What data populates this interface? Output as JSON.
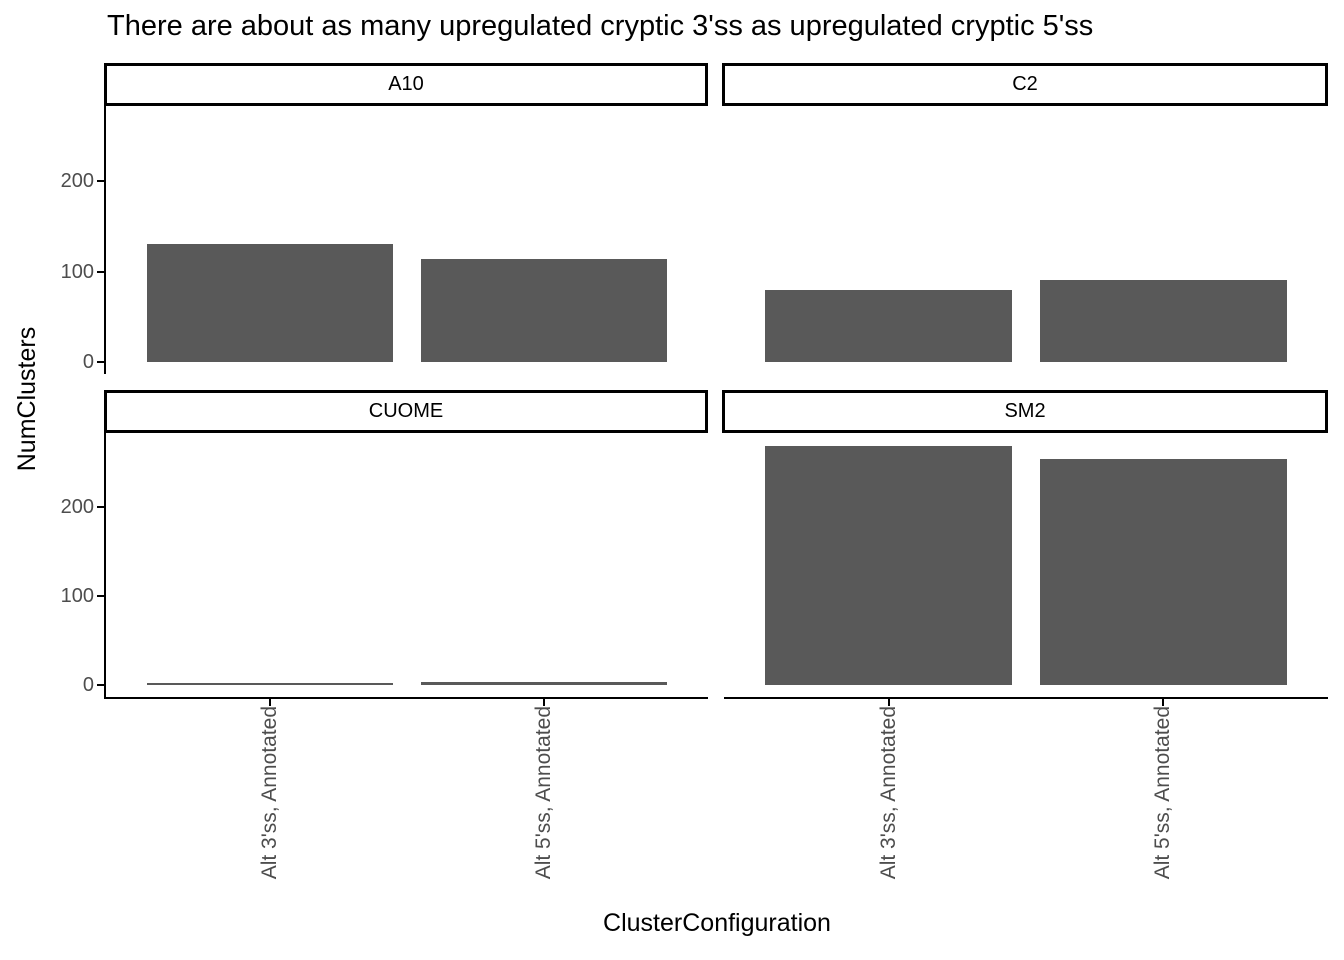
{
  "chart_data": {
    "type": "bar",
    "title": "There are about as many upregulated cryptic 3'ss as upregulated cryptic 5'ss",
    "xlabel": "ClusterConfiguration",
    "ylabel": "NumClusters",
    "categories": [
      "Alt 3'ss, Annotated",
      "Alt 5'ss, Annotated"
    ],
    "facets": [
      {
        "name": "A10",
        "values": [
          130,
          114
        ]
      },
      {
        "name": "C2",
        "values": [
          80,
          91
        ]
      },
      {
        "name": "CUOME",
        "values": [
          2,
          3
        ]
      },
      {
        "name": "SM2",
        "values": [
          268,
          254
        ]
      }
    ],
    "y_ticks": [
      0,
      100,
      200
    ],
    "ylim": [
      -13.4,
      283
    ],
    "grid": "off",
    "legend": "none",
    "layout": "facet_wrap 2x2, shared fixed y scale, bars vertical",
    "colors": {
      "bar": "#595959",
      "axis_text": "#4D4D4D",
      "axis_line": "#000000",
      "strip_border": "#000000",
      "strip_background": "#ffffff",
      "title_text": "#000000"
    }
  }
}
